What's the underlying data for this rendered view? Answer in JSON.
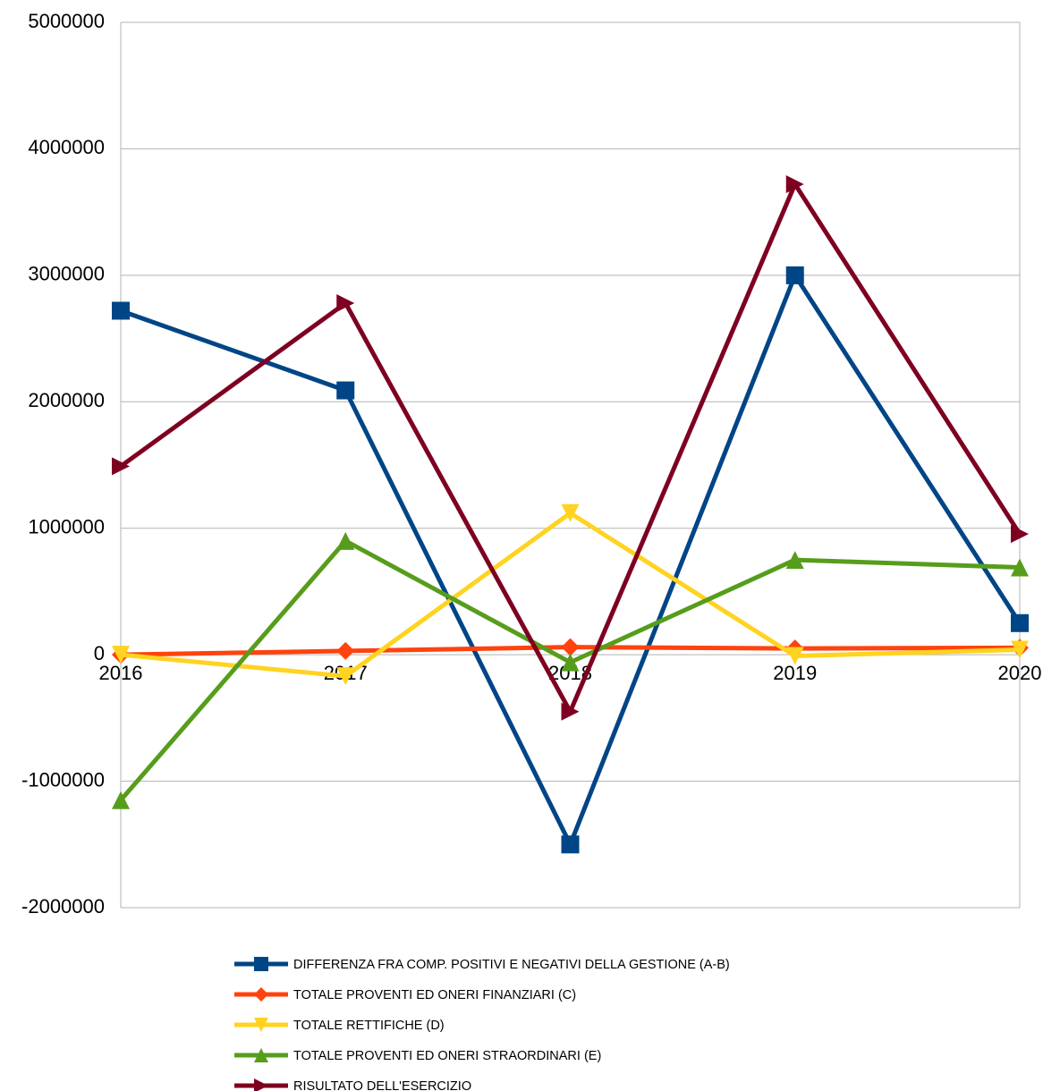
{
  "chart_data": {
    "type": "line",
    "categories": [
      "2016",
      "2017",
      "2018",
      "2019",
      "2020"
    ],
    "series": [
      {
        "name": "DIFFERENZA FRA COMP. POSITIVI E NEGATIVI DELLA GESTIONE (A-B)",
        "color": "#004586",
        "marker": "square",
        "values": [
          2720000,
          2090000,
          -1500000,
          3000000,
          250000
        ]
      },
      {
        "name": "TOTALE PROVENTI ED ONERI FINANZIARI (C)",
        "color": "#ff420e",
        "marker": "diamond",
        "values": [
          0,
          30000,
          60000,
          50000,
          55000
        ]
      },
      {
        "name": "TOTALE RETTIFICHE (D)",
        "color": "#ffd320",
        "marker": "triangle-down",
        "values": [
          0,
          -170000,
          1120000,
          -10000,
          40000
        ]
      },
      {
        "name": "TOTALE PROVENTI ED ONERI STRAORDINARI (E)",
        "color": "#579d1c",
        "marker": "triangle-up",
        "values": [
          -1150000,
          900000,
          -60000,
          750000,
          690000
        ]
      },
      {
        "name": "RISULTATO DELL'ESERCIZIO",
        "color": "#7e0021",
        "marker": "triangle-right",
        "values": [
          1490000,
          2780000,
          -450000,
          3720000,
          955000
        ]
      }
    ],
    "ylim": [
      -2000000,
      5000000
    ],
    "yticks": [
      -2000000,
      -1000000,
      0,
      1000000,
      2000000,
      3000000,
      4000000,
      5000000
    ],
    "grid": true
  }
}
